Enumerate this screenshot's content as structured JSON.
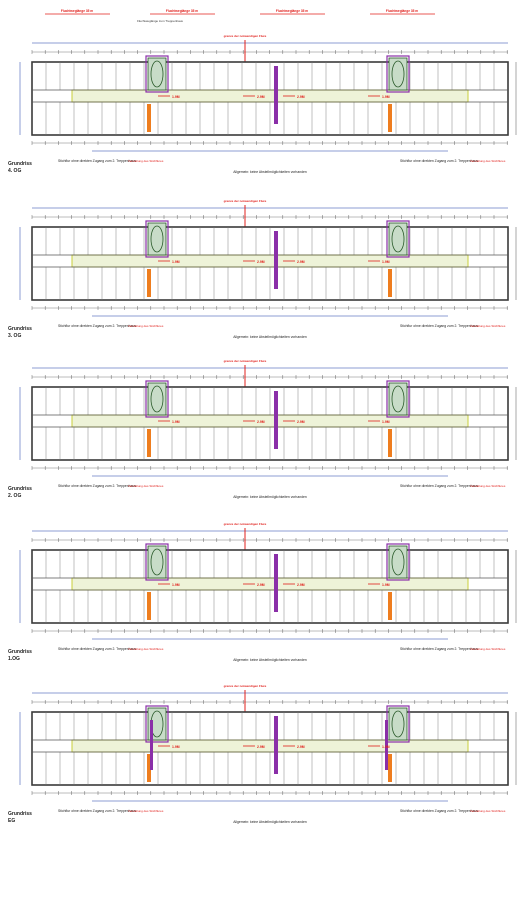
{
  "colors": {
    "wall": "#3a3a3a",
    "corridor": "#eef3d8",
    "corridor_edge": "#c9cf3a",
    "accent_red": "#e0201c",
    "accent_blue": "#1f3fa8",
    "purple": "#8a2fa8",
    "orange": "#ee7d1e",
    "stair_green": "#c8dcc8"
  },
  "header_labels": [
    "Fluchtweglänge 35 m",
    "Fluchtweglänge 35 m",
    "Fluchtweglänge 35 m",
    "Fluchtweglänge 35 m"
  ],
  "header_note": "Fluchtweglänge zum Treppenhaus",
  "floors": [
    {
      "label_plan": "Grundriss",
      "label_level": "4. OG",
      "red_top_note": "grenze der notwendigen Flure",
      "note_left": "Stichflur ohne direkten Zugang zum 2. Treppenhaus",
      "note_right": "Stichflur ohne direkten Zugang zum 2. Treppenhaus",
      "red_note": "Verstellung des Stichflures",
      "footer": "Allgemein: keine Abstellmöglichkeiten vorhanden",
      "distances": [
        "1.9M",
        "2.9M",
        "2.9M",
        "1.9M"
      ]
    },
    {
      "label_plan": "Grundriss",
      "label_level": "3. OG",
      "red_top_note": "grenze der notwendigen Flure",
      "note_left": "Stichflur ohne direkten Zugang zum 2. Treppenhaus",
      "note_right": "Stichflur ohne direkten Zugang zum 2. Treppenhaus",
      "red_note": "Verstellung des Stichflures",
      "footer": "Allgemein: keine Abstellmöglichkeiten vorhanden",
      "distances": [
        "1.9M",
        "2.9M",
        "2.9M",
        "1.9M"
      ]
    },
    {
      "label_plan": "Grundriss",
      "label_level": "2. OG",
      "red_top_note": "grenze der notwendigen Flure",
      "note_left": "Stichflur ohne direkten Zugang zum 2. Treppenhaus",
      "note_right": "Stichflur ohne direkten Zugang zum 2. Treppenhaus",
      "red_note": "Verstellung des Stichflures",
      "footer": "Allgemein: keine Abstellmöglichkeiten vorhanden",
      "distances": [
        "1.9M",
        "2.9M",
        "2.9M",
        "1.9M"
      ]
    },
    {
      "label_plan": "Grundriss",
      "label_level": "1.OG",
      "red_top_note": "grenze der notwendigen Flure",
      "note_left": "Stichflur ohne direkten Zugang zum 2. Treppenhaus",
      "note_right": "Stichflur ohne direkten Zugang zum 2. Treppenhaus",
      "red_note": "Verstellung des Stichflures",
      "footer": "Allgemein: keine Abstellmöglichkeiten vorhanden",
      "distances": [
        "1.9M",
        "2.9M",
        "2.9M",
        "1.9M"
      ]
    },
    {
      "label_plan": "Grundriss",
      "label_level": "EG",
      "red_top_note": "grenze der notwendigen Flure",
      "note_left": "Stichflur ohne direkten Zugang zum 2. Treppenhaus",
      "note_right": "Stichflur ohne direkten Zugang zum 2. Treppenhaus",
      "red_note": "Verstellung des Stichflures",
      "footer": "Allgemein: keine Abstellmöglichkeiten vorhanden",
      "distances": [
        "1.9M",
        "2.9M",
        "2.9M",
        "1.9M"
      ]
    }
  ]
}
